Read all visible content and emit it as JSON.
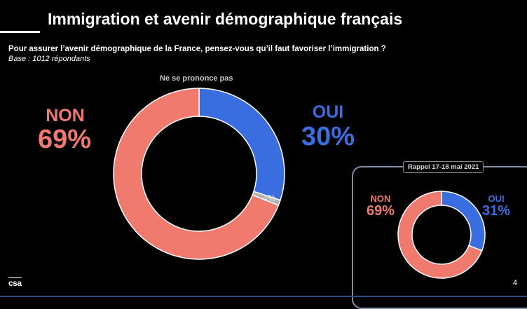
{
  "slide": {
    "title": "Immigration et avenir démographique français",
    "question": "Pour assurer l’avenir démographique de la France, pensez-vous qu’il faut favoriser l’immigration ?",
    "base": "Base : 1012 répondants",
    "page_number": "4",
    "logo_text": "csa"
  },
  "colors": {
    "non": "#f07a6e",
    "oui": "#3a6de0",
    "nsp": "#b0b0b0"
  },
  "chart_data": [
    {
      "type": "pie",
      "categories": [
        "OUI",
        "Ne se prononce pas",
        "NON"
      ],
      "values": [
        30,
        1,
        69
      ],
      "labels": {
        "non": "NON",
        "non_value": "69%",
        "oui": "OUI",
        "oui_value": "30%",
        "nsp": "Ne se prononce pas",
        "nsp_value": "1%"
      }
    },
    {
      "type": "pie",
      "title": "Rappel 17-18 mai 2021",
      "categories": [
        "OUI",
        "NON"
      ],
      "values": [
        31,
        69
      ],
      "labels": {
        "non": "NON",
        "non_value": "69%",
        "oui": "OUI",
        "oui_value": "31%"
      }
    }
  ]
}
